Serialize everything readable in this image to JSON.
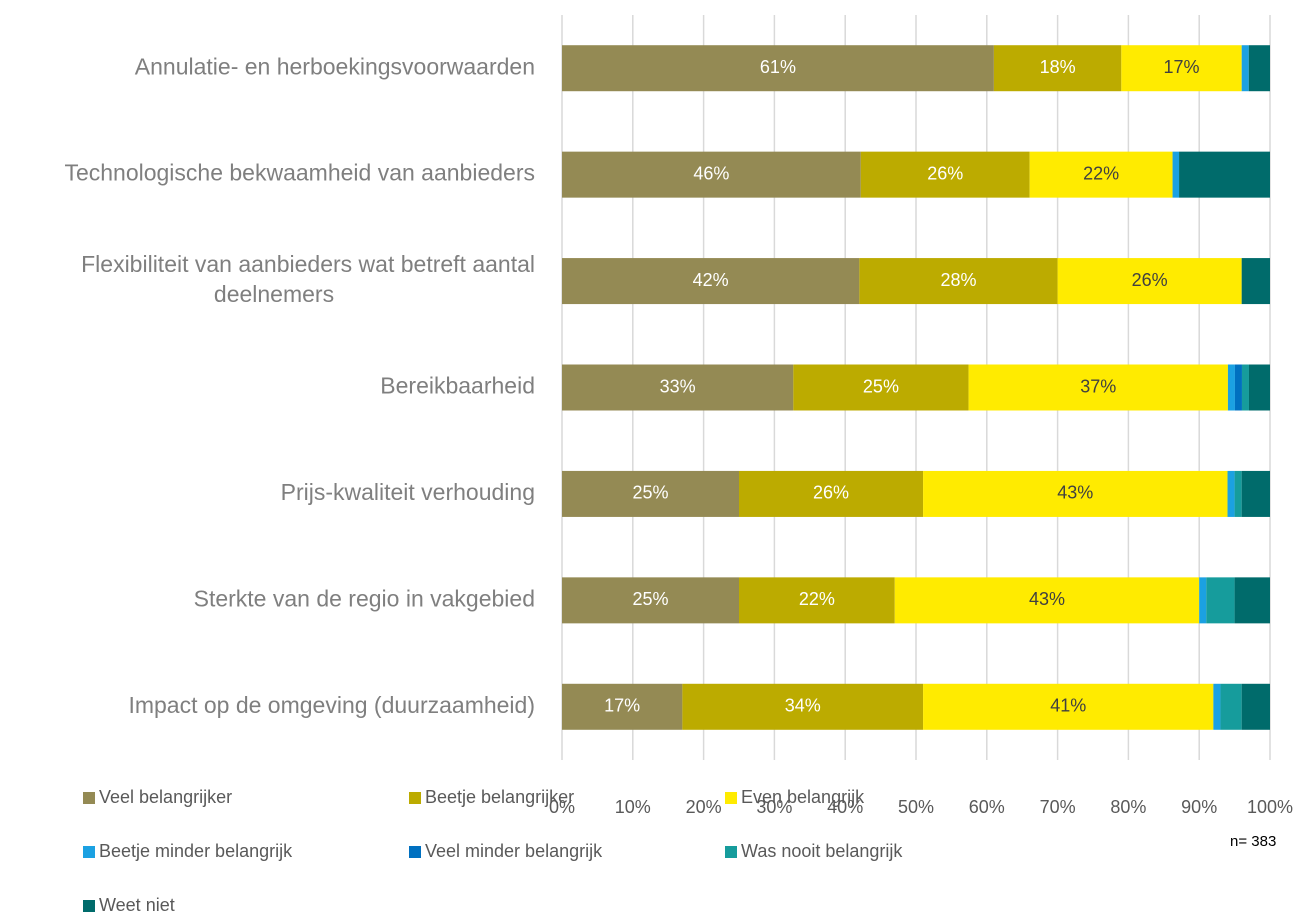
{
  "chart_data": {
    "type": "stacked_barh",
    "stack": "percent",
    "categories": [
      "Annulatie- en herboekingsvoorwaarden",
      "Technologische bekwaamheid van aanbieders",
      "Flexibiliteit van aanbieders wat betreft aantal deelnemers",
      "Bereikbaarheid",
      "Prijs-kwaliteit verhouding",
      "Sterkte van de regio in vakgebied",
      "Impact op de omgeving (duurzaamheid)"
    ],
    "series": [
      {
        "name": "Veel belangrijker",
        "color": "#948a54",
        "values": [
          61,
          46,
          42,
          33,
          25,
          25,
          17
        ],
        "value_labels": [
          "61%",
          "46%",
          "42%",
          "33%",
          "25%",
          "25%",
          "17%"
        ]
      },
      {
        "name": "Beetje belangrijker",
        "color": "#bcab00",
        "values": [
          18,
          26,
          28,
          25,
          26,
          22,
          34
        ],
        "value_labels": [
          "18%",
          "26%",
          "28%",
          "25%",
          "26%",
          "22%",
          "34%"
        ]
      },
      {
        "name": "Even belangrijk",
        "color": "#ffeb00",
        "values": [
          17,
          22,
          26,
          37,
          43,
          43,
          41
        ],
        "value_labels": [
          "17%",
          "22%",
          "26%",
          "37%",
          "43%",
          "43%",
          "41%"
        ]
      },
      {
        "name": "Beetje minder belangrijk",
        "color": "#1ba1e2",
        "values": [
          1,
          1,
          0,
          1,
          1,
          1,
          1
        ]
      },
      {
        "name": "Veel minder belangrijk",
        "color": "#0070c0",
        "values": [
          0,
          0,
          0,
          1,
          0,
          0,
          0
        ]
      },
      {
        "name": "Was nooit belangrijk",
        "color": "#169c9c",
        "values": [
          0,
          0,
          0,
          1,
          1,
          4,
          3
        ]
      },
      {
        "name": "Weet niet",
        "color": "#006b6b",
        "values": [
          3,
          14,
          4,
          3,
          4,
          5,
          4
        ]
      }
    ],
    "xlim": [
      0,
      100
    ],
    "xticks": [
      {
        "value": 0,
        "label": "0%"
      },
      {
        "value": 10,
        "label": "10%"
      },
      {
        "value": 20,
        "label": "20%"
      },
      {
        "value": 30,
        "label": "30%"
      },
      {
        "value": 40,
        "label": "40%"
      },
      {
        "value": 50,
        "label": "50%"
      },
      {
        "value": 60,
        "label": "60%"
      },
      {
        "value": 70,
        "label": "70%"
      },
      {
        "value": 80,
        "label": "80%"
      },
      {
        "value": 90,
        "label": "90%"
      },
      {
        "value": 100,
        "label": "100%"
      }
    ],
    "grid": true,
    "legend": "bottom",
    "annotation": "n= 383"
  }
}
